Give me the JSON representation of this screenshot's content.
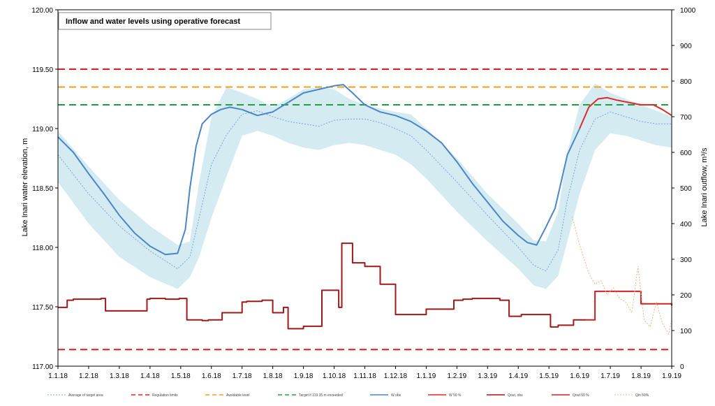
{
  "chart_data": {
    "type": "line",
    "title": "Inflow and water levels using operative forecast",
    "ylabel": "Lake Inari water elevation, m",
    "y2label": "Lake Inari outflow, m³/s",
    "ylim": [
      117.0,
      120.0
    ],
    "y2lim": [
      0,
      1000
    ],
    "y_ticks": [
      "117.00",
      "117.50",
      "118.00",
      "118.50",
      "119.00",
      "119.50",
      "120.00"
    ],
    "y2_ticks": [
      "0",
      "100",
      "200",
      "300",
      "400",
      "500",
      "600",
      "700",
      "800",
      "900",
      "1000"
    ],
    "x_ticks": [
      "1.1.18",
      "1.2.18",
      "1.3.18",
      "1.4.18",
      "1.5.18",
      "1.6.18",
      "1.7.18",
      "1.8.18",
      "1.9.18",
      "1.10.18",
      "1.11.18",
      "1.12.18",
      "1.1.19",
      "1.2.19",
      "1.3.19",
      "1.4.19",
      "1.5.19",
      "1.6.19",
      "1.7.19",
      "1.8.19",
      "1.9.19"
    ],
    "x_unit": "months since 1.1.18",
    "xlim": [
      0,
      20
    ],
    "grid": false,
    "legend_position": "bottom",
    "horizontal_lines": [
      {
        "name": "Regulation limits",
        "y": 119.5,
        "color": "#e02020"
      },
      {
        "name": "Regulation limits",
        "y": 117.14,
        "color": "#e02020"
      },
      {
        "name": "Avoidable level",
        "y": 119.35,
        "color": "#f0a020"
      },
      {
        "name": "Target if 119.35 m exceeded",
        "y": 119.2,
        "color": "#20a040"
      }
    ],
    "series": [
      {
        "name": "Average of target area",
        "axis": "left",
        "style": "dotted",
        "color": "#7aa6d0",
        "x": [
          0,
          1,
          2,
          3,
          3.9,
          4.3,
          4.6,
          5,
          5.5,
          6,
          6.5,
          7,
          7.5,
          8,
          8.5,
          9,
          9.5,
          10,
          10.5,
          11,
          11.5,
          12,
          13,
          14,
          15,
          15.5,
          15.9,
          16.3,
          16.6,
          17,
          17.5,
          18,
          18.5,
          19,
          19.5,
          20
        ],
        "y": [
          118.78,
          118.45,
          118.18,
          117.97,
          117.82,
          117.92,
          118.25,
          118.7,
          118.95,
          119.12,
          119.15,
          119.1,
          119.06,
          119.04,
          119.02,
          119.07,
          119.08,
          119.08,
          119.05,
          119.0,
          118.94,
          118.82,
          118.55,
          118.27,
          118.0,
          117.85,
          117.8,
          117.98,
          118.4,
          118.82,
          119.08,
          119.14,
          119.1,
          119.06,
          119.04,
          119.04
        ]
      },
      {
        "name": "Target area",
        "axis": "left",
        "style": "band",
        "color": "#d5ebf2",
        "x": [
          0,
          1,
          2,
          3,
          3.9,
          4.3,
          4.6,
          5,
          5.5,
          6,
          6.5,
          7,
          7.5,
          8,
          8.5,
          9,
          9.5,
          10,
          10.5,
          11,
          11.5,
          12,
          13,
          14,
          15,
          15.5,
          15.9,
          16.3,
          16.6,
          17,
          17.5,
          18,
          18.5,
          19,
          19.5,
          20
        ],
        "upper": [
          118.98,
          118.68,
          118.4,
          118.18,
          118.02,
          118.05,
          118.55,
          119.1,
          119.35,
          119.3,
          119.25,
          119.18,
          119.25,
          119.33,
          119.35,
          119.33,
          119.25,
          119.2,
          119.17,
          119.14,
          119.12,
          119.0,
          118.75,
          118.45,
          118.2,
          118.06,
          118.05,
          118.3,
          118.8,
          119.2,
          119.38,
          119.3,
          119.25,
          119.2,
          119.15,
          119.1
        ],
        "lower": [
          118.55,
          118.2,
          117.92,
          117.75,
          117.65,
          117.75,
          117.92,
          118.25,
          118.6,
          118.94,
          118.98,
          118.94,
          118.88,
          118.84,
          118.82,
          118.86,
          118.88,
          118.86,
          118.82,
          118.78,
          118.7,
          118.58,
          118.3,
          118.05,
          117.82,
          117.68,
          117.65,
          117.76,
          118.05,
          118.45,
          118.82,
          118.96,
          118.94,
          118.9,
          118.86,
          118.84
        ]
      },
      {
        "name": "W obs",
        "axis": "left",
        "style": "solid",
        "color": "#4a86c6",
        "x": [
          0,
          0.5,
          1,
          1.5,
          2,
          2.5,
          3,
          3.5,
          3.9,
          4.15,
          4.3,
          4.5,
          4.7,
          5,
          5.3,
          5.6,
          6,
          6.5,
          7,
          7.5,
          8,
          8.5,
          9,
          9.3,
          9.6,
          10,
          10.5,
          11,
          11.5,
          12,
          12.5,
          13,
          13.5,
          14,
          14.5,
          15,
          15.3,
          15.6,
          15.9,
          16.2,
          16.6,
          17
        ],
        "y": [
          118.93,
          118.8,
          118.62,
          118.45,
          118.27,
          118.12,
          118.01,
          117.94,
          117.95,
          118.15,
          118.5,
          118.85,
          119.04,
          119.12,
          119.16,
          119.18,
          119.16,
          119.11,
          119.14,
          119.22,
          119.3,
          119.33,
          119.36,
          119.37,
          119.3,
          119.2,
          119.14,
          119.11,
          119.06,
          118.98,
          118.88,
          118.72,
          118.54,
          118.38,
          118.22,
          118.1,
          118.04,
          118.02,
          118.17,
          118.33,
          118.78,
          119.0
        ]
      },
      {
        "name": "W 50 %",
        "axis": "left",
        "style": "solid",
        "color": "#e02828",
        "x": [
          17,
          17.3,
          17.6,
          17.9,
          18.2,
          18.6,
          19.0,
          19.4,
          19.7,
          20
        ],
        "y": [
          119.0,
          119.18,
          119.25,
          119.26,
          119.24,
          119.22,
          119.2,
          119.2,
          119.16,
          119.11
        ]
      },
      {
        "name": "Qout, obs",
        "axis": "right",
        "style": "step",
        "color": "#a01818",
        "x": [
          0,
          0.3,
          0.5,
          1.4,
          1.55,
          2.9,
          3.0,
          3.5,
          3.95,
          4.2,
          4.7,
          4.9,
          5.35,
          5.8,
          6.0,
          6.15,
          6.65,
          7.0,
          7.35,
          7.5,
          8.0,
          8.6,
          9.0,
          9.15,
          9.25,
          9.6,
          10.0,
          10.5,
          10.65,
          11.0,
          11.7,
          12.0,
          12.9,
          13.2,
          13.5,
          14.4,
          14.7,
          15.1,
          15.5,
          15.9,
          16.05,
          16.3,
          16.55,
          16.8,
          17.0,
          17.2
        ],
        "y": [
          165,
          185,
          188,
          190,
          155,
          188,
          190,
          188,
          190,
          130,
          128,
          130,
          150,
          150,
          180,
          182,
          185,
          150,
          165,
          105,
          112,
          213,
          213,
          165,
          345,
          290,
          280,
          230,
          230,
          145,
          145,
          160,
          185,
          188,
          190,
          185,
          140,
          145,
          145,
          145,
          110,
          115,
          115,
          130,
          130,
          130
        ]
      },
      {
        "name": "Qout 50 %",
        "axis": "right",
        "style": "step",
        "color": "#d02020",
        "x": [
          17.2,
          17.5,
          18.0,
          18.5,
          19.0,
          19.5,
          20
        ],
        "y": [
          130,
          210,
          210,
          210,
          175,
          175,
          170
        ]
      },
      {
        "name": "Qin 50%",
        "axis": "right",
        "style": "dotted",
        "color": "#f2b487",
        "x": [
          16.75,
          16.85,
          17.0,
          17.15,
          17.3,
          17.5,
          17.7,
          17.9,
          18.1,
          18.3,
          18.5,
          18.7,
          18.9,
          19.1,
          19.3,
          19.5,
          19.7,
          19.9,
          20
        ],
        "y": [
          420,
          390,
          340,
          300,
          260,
          230,
          240,
          200,
          220,
          190,
          180,
          150,
          280,
          130,
          110,
          180,
          120,
          90,
          130
        ]
      }
    ],
    "legend": [
      "Average of target area",
      "Regulation limits",
      "Avoidable level",
      "Target if 119.35 m exceeded",
      "W obs",
      "W 50 %",
      "Qout, obs",
      "Qout 50 %",
      "Qin 50%"
    ]
  }
}
